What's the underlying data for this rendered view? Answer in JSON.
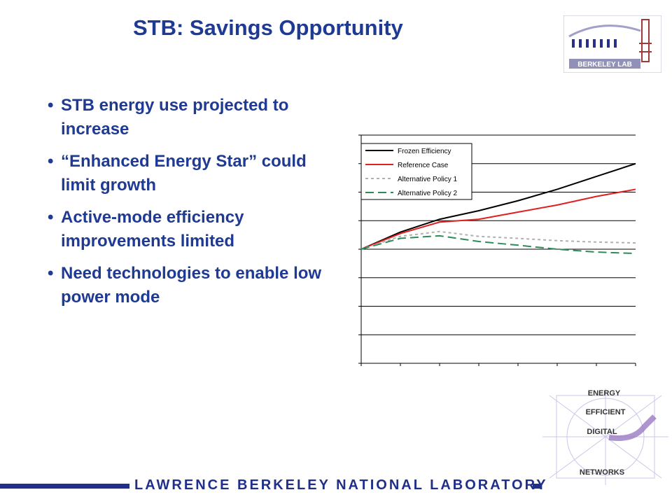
{
  "slide": {
    "title": "STB: Savings Opportunity",
    "bullets": [
      "STB energy use projected to increase",
      "“Enhanced Energy Star” could limit growth",
      "Active-mode efficiency improvements limited",
      "Need technologies to enable low power mode"
    ],
    "bullet_glyph": "•"
  },
  "logos": {
    "berkeley_lab": "BERKELEY LAB",
    "eedn_lines": [
      "ENERGY",
      "EFFICIENT",
      "DIGITAL",
      "NETWORKS"
    ]
  },
  "footer": {
    "text": "LAWRENCE BERKELEY NATIONAL LABORATORY",
    "color": "#1f2f8a"
  },
  "chart_data": {
    "type": "line",
    "grid": true,
    "legend_position": "top-left",
    "x": [
      0,
      1,
      2,
      3,
      4,
      5,
      6,
      7
    ],
    "ylim": [
      -4,
      4
    ],
    "series": [
      {
        "name": "Frozen Efficiency",
        "color": "#000000",
        "dash": "",
        "values": [
          0,
          0.6,
          1.05,
          1.35,
          1.7,
          2.1,
          2.55,
          3.0
        ]
      },
      {
        "name": "Reference Case",
        "color": "#e02020",
        "dash": "",
        "values": [
          0,
          0.55,
          0.95,
          1.05,
          1.3,
          1.55,
          1.85,
          2.1
        ]
      },
      {
        "name": "Alternative Policy 1",
        "color": "#b0b0b0",
        "dash": "4,4",
        "values": [
          0,
          0.45,
          0.62,
          0.45,
          0.38,
          0.3,
          0.25,
          0.22
        ]
      },
      {
        "name": "Alternative Policy 2",
        "color": "#2e8b57",
        "dash": "12,6",
        "values": [
          0,
          0.38,
          0.47,
          0.27,
          0.14,
          0.0,
          -0.1,
          -0.15
        ]
      }
    ]
  }
}
